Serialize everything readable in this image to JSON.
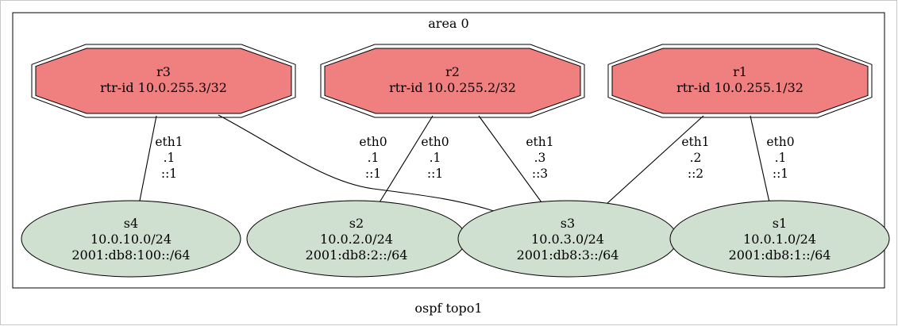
{
  "graph": {
    "title": "ospf topo1",
    "cluster_label": "area 0",
    "colors": {
      "router_fill": "#f08080",
      "switch_fill": "#d0e0d0",
      "stroke": "#000000",
      "background": "#ffffff"
    },
    "routers": [
      {
        "id": "r3",
        "lines": [
          "r3",
          "rtr-id 10.0.255.3/32"
        ]
      },
      {
        "id": "r2",
        "lines": [
          "r2",
          "rtr-id 10.0.255.2/32"
        ]
      },
      {
        "id": "r1",
        "lines": [
          "r1",
          "rtr-id 10.0.255.1/32"
        ]
      }
    ],
    "switches": [
      {
        "id": "s4",
        "lines": [
          "s4",
          "10.0.10.0/24",
          "2001:db8:100::/64"
        ]
      },
      {
        "id": "s2",
        "lines": [
          "s2",
          "10.0.2.0/24",
          "2001:db8:2::/64"
        ]
      },
      {
        "id": "s3",
        "lines": [
          "s3",
          "10.0.3.0/24",
          "2001:db8:3::/64"
        ]
      },
      {
        "id": "s1",
        "lines": [
          "s1",
          "10.0.1.0/24",
          "2001:db8:1::/64"
        ]
      }
    ],
    "edges": [
      {
        "from": "r3",
        "to": "s4",
        "label": [
          "eth1",
          ".1",
          "::1"
        ]
      },
      {
        "from": "r3",
        "to": "s3",
        "label": [
          "eth0",
          ".1",
          "::1"
        ]
      },
      {
        "from": "r2",
        "to": "s2",
        "label": [
          "eth0",
          ".1",
          "::1"
        ]
      },
      {
        "from": "r2",
        "to": "s3",
        "label": [
          "eth1",
          ".3",
          "::3"
        ]
      },
      {
        "from": "r1",
        "to": "s3",
        "label": [
          "eth1",
          ".2",
          "::2"
        ]
      },
      {
        "from": "r1",
        "to": "s1",
        "label": [
          "eth0",
          ".1",
          "::1"
        ]
      }
    ]
  }
}
